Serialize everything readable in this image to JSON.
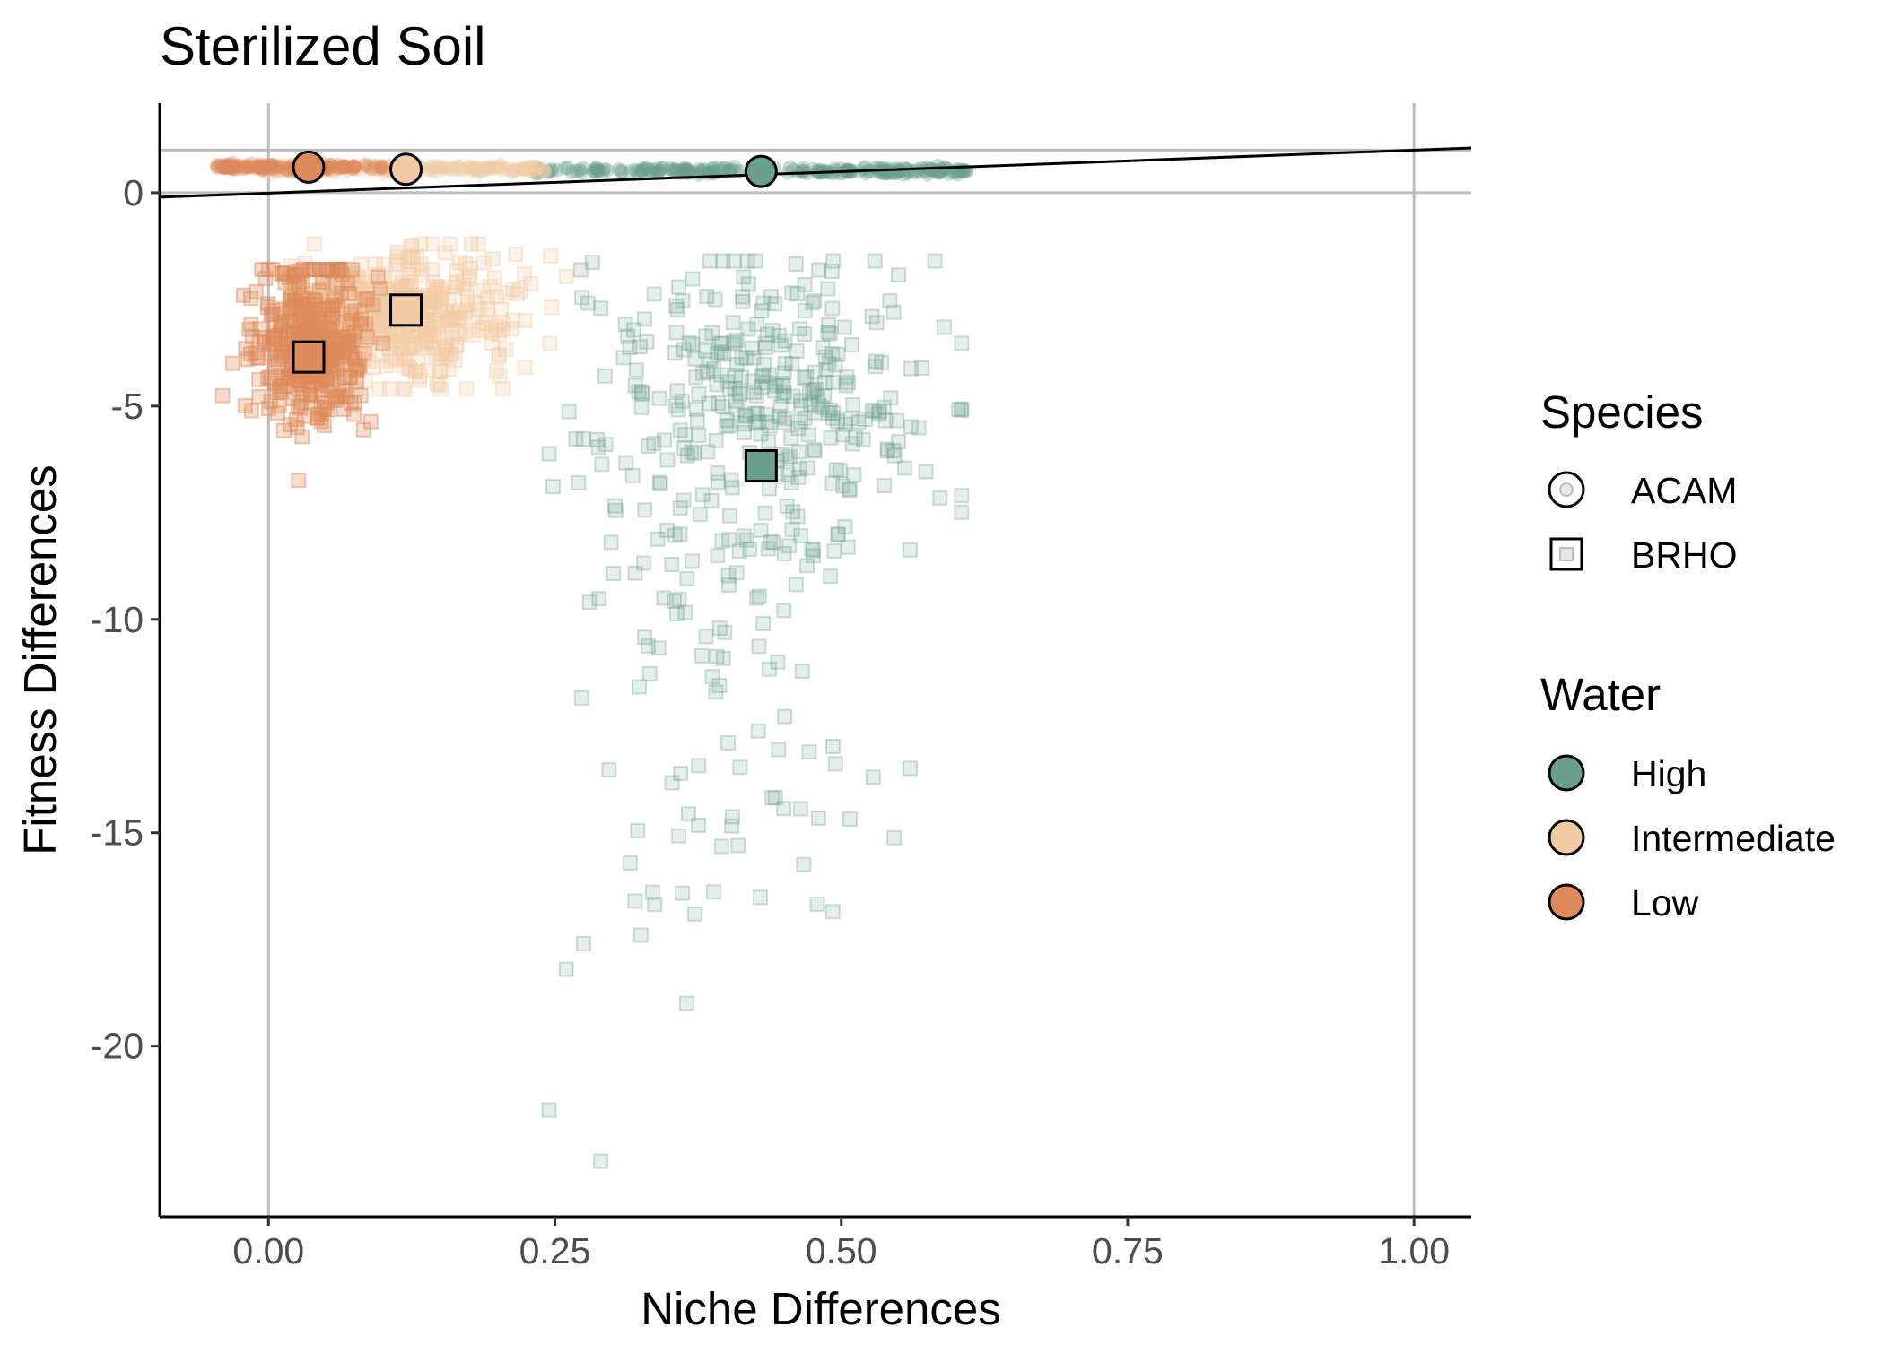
{
  "chart_data": {
    "type": "scatter",
    "title": "Sterilized Soil",
    "xlabel": "Niche Differences",
    "ylabel": "Fitness Differences",
    "xlim": [
      -0.095,
      1.05
    ],
    "ylim": [
      -24.0,
      2.1
    ],
    "xticks": [
      0.0,
      0.25,
      0.5,
      0.75,
      1.0
    ],
    "xtick_labels": [
      "0.00",
      "0.25",
      "0.50",
      "0.75",
      "1.00"
    ],
    "yticks": [
      0,
      -5,
      -10,
      -15,
      -20
    ],
    "ytick_labels": [
      "0",
      "-5",
      "-10",
      "-15",
      "-20"
    ],
    "grid": false,
    "reference_lines": {
      "vertical_x": [
        0.0,
        1.0
      ],
      "horizontal_y": [
        0.0,
        1.0
      ],
      "coexistence_line": {
        "x": [
          -0.095,
          1.05
        ],
        "y": [
          -0.105,
          1.05
        ]
      }
    },
    "colors": {
      "High": "#6a9e8d",
      "Intermediate": "#f2cba5",
      "Low": "#de8a5b"
    },
    "legend": {
      "position": "right",
      "species": {
        "title": "Species",
        "items": [
          "ACAM",
          "BRHO"
        ]
      },
      "water": {
        "title": "Water",
        "items": [
          "High",
          "Intermediate",
          "Low"
        ]
      }
    },
    "series": [
      {
        "species": "ACAM",
        "water": "High",
        "mean": {
          "x": 0.43,
          "y": 0.5
        },
        "points_x_range": [
          0.23,
          0.61
        ],
        "points_y_range": [
          0.45,
          0.62
        ]
      },
      {
        "species": "ACAM",
        "water": "Intermediate",
        "mean": {
          "x": 0.12,
          "y": 0.55
        },
        "points_x_range": [
          0.0,
          0.25
        ],
        "points_y_range": [
          0.45,
          0.65
        ]
      },
      {
        "species": "ACAM",
        "water": "Low",
        "mean": {
          "x": 0.035,
          "y": 0.6
        },
        "points_x_range": [
          -0.045,
          0.1
        ],
        "points_y_range": [
          0.5,
          0.7
        ]
      },
      {
        "species": "BRHO",
        "water": "High",
        "mean": {
          "x": 0.43,
          "y": -6.4
        },
        "points_x_range": [
          0.24,
          0.61
        ],
        "points_y_range": [
          -22.8,
          -1.6
        ]
      },
      {
        "species": "BRHO",
        "water": "Intermediate",
        "mean": {
          "x": 0.12,
          "y": -2.75
        },
        "points_x_range": [
          0.02,
          0.26
        ],
        "points_y_range": [
          -4.5,
          -1.2
        ]
      },
      {
        "species": "BRHO",
        "water": "Low",
        "mean": {
          "x": 0.035,
          "y": -3.85
        },
        "points_x_range": [
          -0.045,
          0.1
        ],
        "points_y_range": [
          -7.0,
          -1.8
        ]
      }
    ]
  }
}
